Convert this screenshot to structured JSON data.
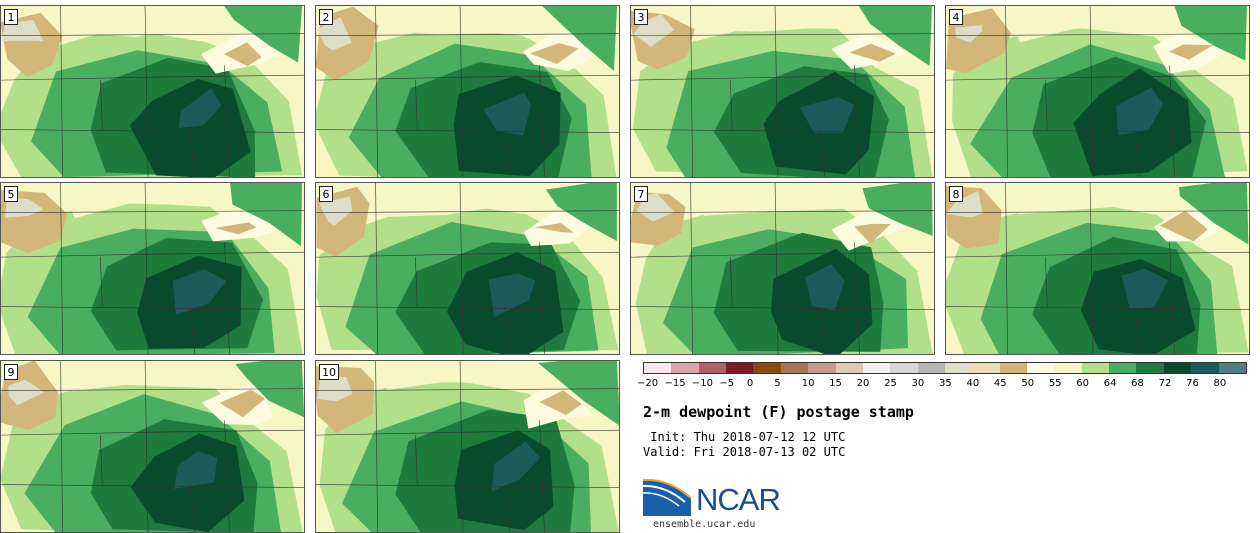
{
  "panels": [
    {
      "label": "1"
    },
    {
      "label": "2"
    },
    {
      "label": "3"
    },
    {
      "label": "4"
    },
    {
      "label": "5"
    },
    {
      "label": "6"
    },
    {
      "label": "7"
    },
    {
      "label": "8"
    },
    {
      "label": "9"
    },
    {
      "label": "10"
    }
  ],
  "colorbar": {
    "colors": [
      "#f7e8ea",
      "#d9a5a9",
      "#b06068",
      "#7d1a22",
      "#8a4a14",
      "#a87654",
      "#c79d88",
      "#e2c7b8",
      "#f2f0f0",
      "#d8d8d8",
      "#b4b4b4",
      "#dedec8",
      "#e8dcb0",
      "#d2b67a",
      "#ffffe8",
      "#f7f7c5",
      "#b2df8a",
      "#4aae61",
      "#1e7a3d",
      "#074b2c",
      "#1a5b5a",
      "#4f7f83"
    ],
    "ticks": [
      "−20",
      "−15",
      "−10",
      "−5",
      "0",
      "5",
      "10",
      "15",
      "20",
      "25",
      "30",
      "35",
      "40",
      "45",
      "50",
      "55",
      "60",
      "64",
      "68",
      "72",
      "76",
      "80"
    ]
  },
  "title": "2-m dewpoint (F) postage stamp",
  "init_line": " Init: Thu 2018-07-12 12 UTC",
  "valid_line": "Valid: Fri 2018-07-13 02 UTC",
  "logo": {
    "text": "NCAR",
    "url": "ensemble.ucar.edu"
  },
  "map_colors": {
    "dry_tan": "#d2b67a",
    "pale": "#f7f7c5",
    "light_green": "#b2df8a",
    "mid_green": "#4aae61",
    "dark_green": "#1e7a3d",
    "deep_green": "#074b2c",
    "teal": "#1a5b5a"
  }
}
